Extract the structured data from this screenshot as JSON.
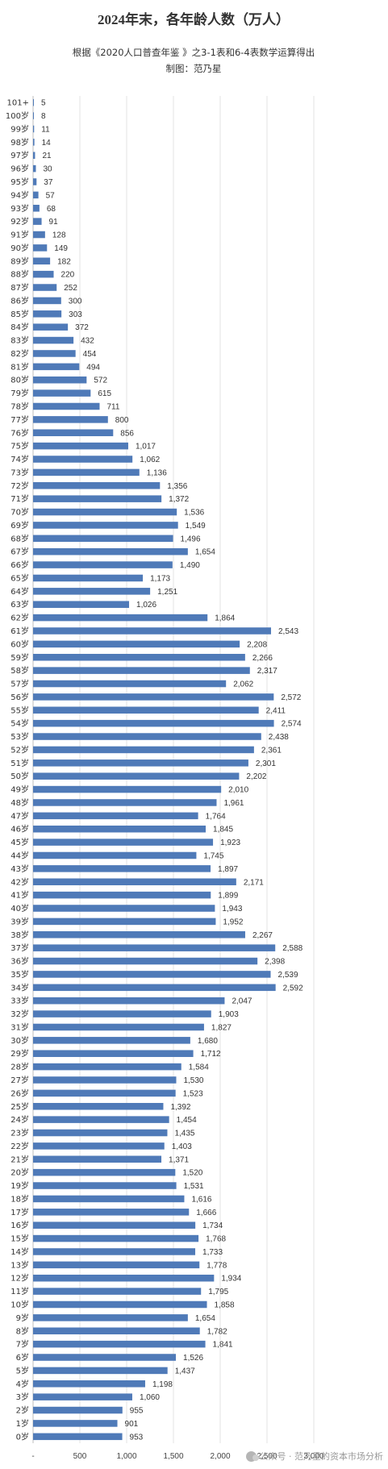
{
  "chart_data": {
    "type": "bar",
    "orientation": "horizontal",
    "title": "2024年末，各年龄人数（万人）",
    "subtitle": "根据《2020人口普查年鉴 》之3-1表和6-4表数学运算得出",
    "credit": "制图：范乃星",
    "xlim": [
      0,
      3000
    ],
    "x_ticks": [
      0,
      500,
      1000,
      1500,
      2000,
      2500,
      3000
    ],
    "x_tick_labels": [
      "-",
      "500",
      "1,000",
      "1,500",
      "2,000",
      "2,500",
      "3,000"
    ],
    "bar_color": "#4f7ab8",
    "categories": [
      "101+",
      "100岁",
      "99岁",
      "98岁",
      "97岁",
      "96岁",
      "95岁",
      "94岁",
      "93岁",
      "92岁",
      "91岁",
      "90岁",
      "89岁",
      "88岁",
      "87岁",
      "86岁",
      "85岁",
      "84岁",
      "83岁",
      "82岁",
      "81岁",
      "80岁",
      "79岁",
      "78岁",
      "77岁",
      "76岁",
      "75岁",
      "74岁",
      "73岁",
      "72岁",
      "71岁",
      "70岁",
      "69岁",
      "68岁",
      "67岁",
      "66岁",
      "65岁",
      "64岁",
      "63岁",
      "62岁",
      "61岁",
      "60岁",
      "59岁",
      "58岁",
      "57岁",
      "56岁",
      "55岁",
      "54岁",
      "53岁",
      "52岁",
      "51岁",
      "50岁",
      "49岁",
      "48岁",
      "47岁",
      "46岁",
      "45岁",
      "44岁",
      "43岁",
      "42岁",
      "41岁",
      "40岁",
      "39岁",
      "38岁",
      "37岁",
      "36岁",
      "35岁",
      "34岁",
      "33岁",
      "32岁",
      "31岁",
      "30岁",
      "29岁",
      "28岁",
      "27岁",
      "26岁",
      "25岁",
      "24岁",
      "23岁",
      "22岁",
      "21岁",
      "20岁",
      "19岁",
      "18岁",
      "17岁",
      "16岁",
      "15岁",
      "14岁",
      "13岁",
      "12岁",
      "11岁",
      "10岁",
      "9岁",
      "8岁",
      "7岁",
      "6岁",
      "5岁",
      "4岁",
      "3岁",
      "2岁",
      "1岁",
      "0岁"
    ],
    "values": [
      5,
      8,
      11,
      14,
      21,
      30,
      37,
      57,
      68,
      91,
      128,
      149,
      182,
      220,
      252,
      300,
      303,
      372,
      432,
      454,
      494,
      572,
      615,
      711,
      800,
      856,
      1017,
      1062,
      1136,
      1356,
      1372,
      1536,
      1549,
      1496,
      1654,
      1490,
      1173,
      1251,
      1026,
      1864,
      2543,
      2208,
      2266,
      2317,
      2062,
      2572,
      2411,
      2574,
      2438,
      2361,
      2301,
      2202,
      2010,
      1961,
      1764,
      1845,
      1923,
      1745,
      1897,
      2171,
      1899,
      1943,
      1952,
      2267,
      2588,
      2398,
      2539,
      2592,
      2047,
      1903,
      1827,
      1680,
      1712,
      1584,
      1530,
      1523,
      1392,
      1454,
      1435,
      1403,
      1371,
      1520,
      1531,
      1616,
      1666,
      1734,
      1768,
      1733,
      1778,
      1934,
      1795,
      1858,
      1654,
      1782,
      1841,
      1526,
      1437,
      1198,
      1060,
      955,
      901,
      953
    ],
    "value_labels": [
      "5",
      "8",
      "11",
      "14",
      "21",
      "30",
      "37",
      "57",
      "68",
      "91",
      "128",
      "149",
      "182",
      "220",
      "252",
      "300",
      "303",
      "372",
      "432",
      "454",
      "494",
      "572",
      "615",
      "711",
      "800",
      "856",
      "1,017",
      "1,062",
      "1,136",
      "1,356",
      "1,372",
      "1,536",
      "1,549",
      "1,496",
      "1,654",
      "1,490",
      "1,173",
      "1,251",
      "1,026",
      "1,864",
      "2,543",
      "2,208",
      "2,266",
      "2,317",
      "2,062",
      "2,572",
      "2,411",
      "2,574",
      "2,438",
      "2,361",
      "2,301",
      "2,202",
      "2,010",
      "1,961",
      "1,764",
      "1,845",
      "1,923",
      "1,745",
      "1,897",
      "2,171",
      "1,899",
      "1,943",
      "1,952",
      "2,267",
      "2,588",
      "2,398",
      "2,539",
      "2,592",
      "2,047",
      "1,903",
      "1,827",
      "1,680",
      "1,712",
      "1,584",
      "1,530",
      "1,523",
      "1,392",
      "1,454",
      "1,435",
      "1,403",
      "1,371",
      "1,520",
      "1,531",
      "1,616",
      "1,666",
      "1,734",
      "1,768",
      "1,733",
      "1,778",
      "1,934",
      "1,795",
      "1,858",
      "1,654",
      "1,782",
      "1,841",
      "1,526",
      "1,437",
      "1,198",
      "1,060",
      "955",
      "901",
      "953"
    ]
  },
  "watermark": {
    "text": "公众号 · 范乃星的资本市场分析",
    "icon": "wechat-icon"
  }
}
